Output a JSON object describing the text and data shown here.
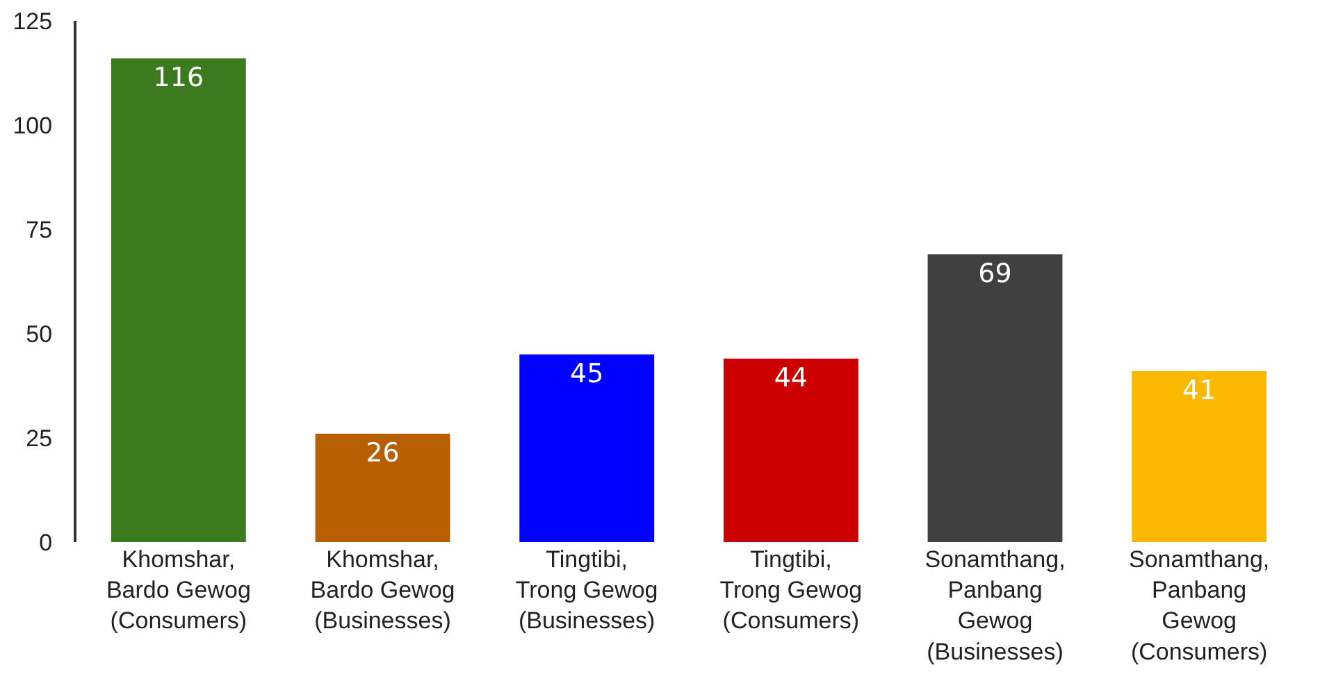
{
  "chart_data": {
    "type": "bar",
    "categories": [
      "Khomshar, Bardo Gewog (Consumers)",
      "Khomshar, Bardo Gewog (Businesses)",
      "Tingtibi, Trong Gewog (Businesses)",
      "Tingtibi, Trong Gewog (Consumers)",
      "Sonamthang, Panbang Gewog (Businesses)",
      "Sonamthang, Panbang Gewog (Consumers)"
    ],
    "values": [
      116,
      26,
      45,
      44,
      69,
      41
    ],
    "colors": [
      "#3b7a1e",
      "#b85f04",
      "#0000ff",
      "#cc0000",
      "#404040",
      "#fbb800"
    ],
    "ylim": [
      0,
      125
    ],
    "yticks": [
      0,
      25,
      50,
      75,
      100,
      125
    ],
    "data_labels": true
  }
}
